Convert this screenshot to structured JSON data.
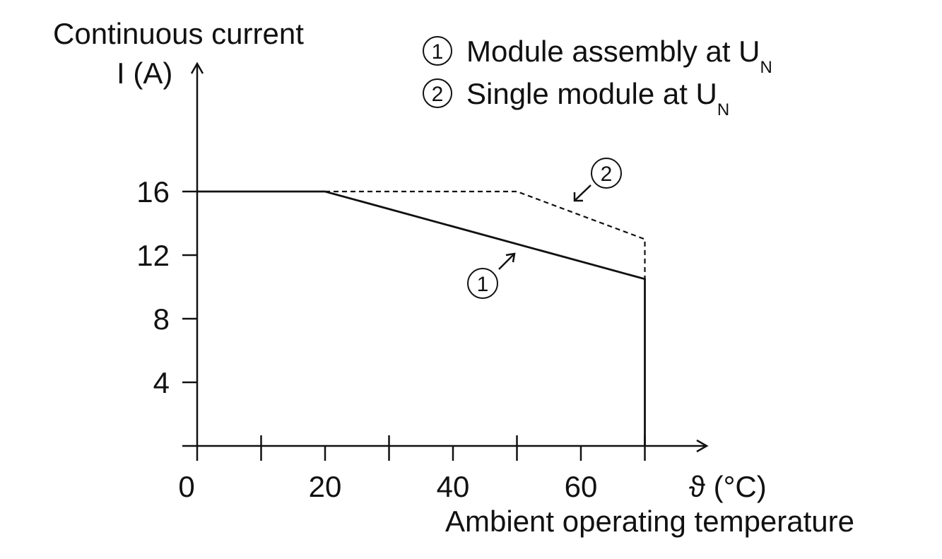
{
  "chart_data": {
    "type": "line",
    "title": "",
    "ylabel": "Continuous current",
    "ylabel_unit": "I (A)",
    "xlabel": "Ambient operating temperature",
    "xlabel_unit": "ϑ (°C)",
    "xlim": [
      0,
      80
    ],
    "ylim": [
      0,
      20
    ],
    "x_tick_labels": [
      "0",
      "20",
      "40",
      "60"
    ],
    "x_tick_values": [
      0,
      20,
      40,
      60
    ],
    "x_minor_ticks": [
      10,
      30,
      50,
      70
    ],
    "y_tick_labels": [
      "4",
      "8",
      "12",
      "16"
    ],
    "y_tick_values": [
      4,
      8,
      12,
      16
    ],
    "grid": false,
    "legend_position": "top-right",
    "series": [
      {
        "name": "Module assembly at U",
        "subscript": "N",
        "marker": "①",
        "style": "solid",
        "points": [
          [
            0,
            16
          ],
          [
            20,
            16
          ],
          [
            70,
            10.5
          ],
          [
            70,
            0
          ]
        ]
      },
      {
        "name": "Single module at U",
        "subscript": "N",
        "marker": "②",
        "style": "dashed",
        "points": [
          [
            20,
            16
          ],
          [
            50,
            16
          ],
          [
            70,
            13
          ],
          [
            70,
            10.5
          ]
        ]
      }
    ]
  }
}
